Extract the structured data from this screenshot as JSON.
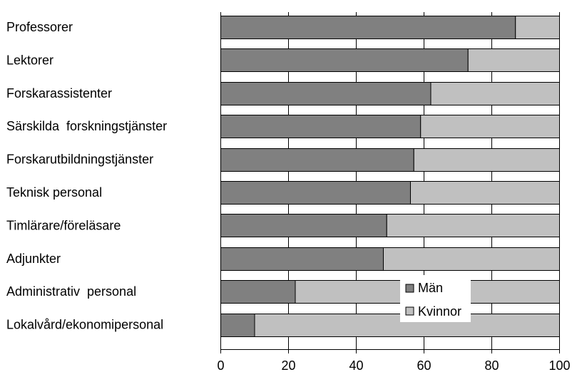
{
  "chart_data": {
    "type": "bar",
    "orientation": "horizontal",
    "stacked": true,
    "categories": [
      "Professorer",
      "Lektorer",
      "Forskarassistenter",
      "Särskilda  forskningstjänster",
      "Forskarutbildningstjänster",
      "Teknisk personal",
      "Timlärare/föreläsare",
      "Adjunkter",
      "Administrativ  personal",
      "Lokalvård/ekonomipersonal"
    ],
    "series": [
      {
        "name": "Män",
        "color": "#808080",
        "values": [
          87,
          73,
          62,
          59,
          57,
          56,
          49,
          48,
          22,
          10
        ]
      },
      {
        "name": "Kvinnor",
        "color": "#c0c0c0",
        "values": [
          13,
          27,
          38,
          41,
          43,
          44,
          51,
          52,
          78,
          90
        ]
      }
    ],
    "xlim": [
      0,
      100
    ],
    "xticks": [
      "0",
      "20",
      "40",
      "60",
      "80",
      "100"
    ],
    "grid": "vertical",
    "legend_position": "lower-right inside",
    "title": "",
    "xlabel": "",
    "ylabel": ""
  }
}
